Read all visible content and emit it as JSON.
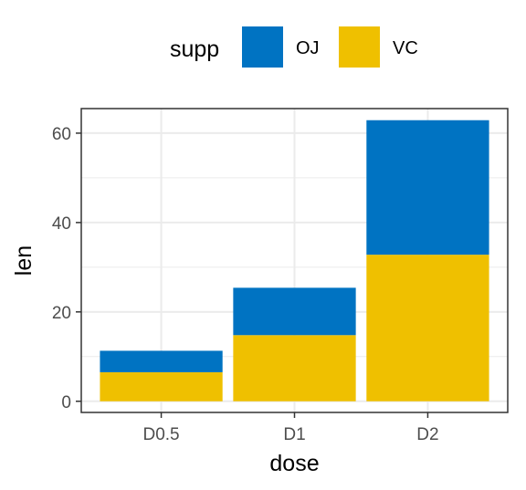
{
  "chart_data": {
    "type": "bar",
    "stacked": true,
    "categories": [
      "D0.5",
      "D1",
      "D2"
    ],
    "series": [
      {
        "name": "OJ",
        "color": "#0073C2",
        "values": [
          4.8,
          10.6,
          30.1
        ]
      },
      {
        "name": "VC",
        "color": "#EFC000",
        "values": [
          6.5,
          14.8,
          32.8
        ]
      }
    ],
    "xlabel": "dose",
    "ylabel": "len",
    "yticks": [
      0,
      20,
      40,
      60
    ],
    "ylim": [
      -2.5,
      65.5
    ],
    "legend": {
      "title": "supp",
      "position": "top"
    },
    "grid": true,
    "panel_border": true
  }
}
